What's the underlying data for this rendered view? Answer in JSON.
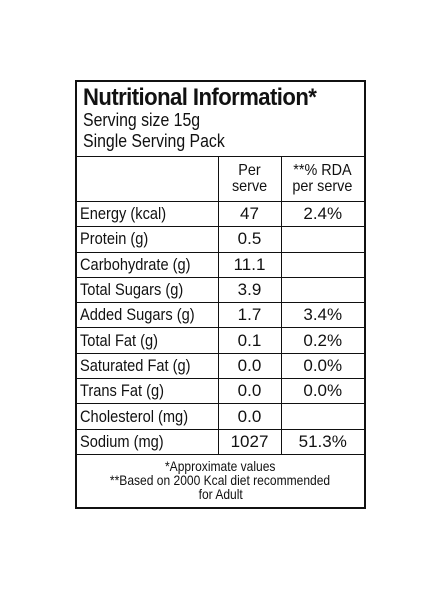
{
  "label": {
    "title": "Nutritional Information*",
    "serving_size": "Serving size 15g",
    "pack": "Single Serving Pack",
    "columns": {
      "per_serve": [
        "Per",
        "serve"
      ],
      "rda": [
        "**% RDA",
        "per serve"
      ]
    },
    "rows": [
      {
        "name": "Energy (kcal)",
        "value": "47",
        "rda": "2.4%"
      },
      {
        "name": "Protein (g)",
        "value": "0.5",
        "rda": ""
      },
      {
        "name": "Carbohydrate (g)",
        "value": "11.1",
        "rda": ""
      },
      {
        "name": "Total Sugars (g)",
        "value": "3.9",
        "rda": ""
      },
      {
        "name": "Added Sugars (g)",
        "value": "1.7",
        "rda": "3.4%"
      },
      {
        "name": "Total Fat (g)",
        "value": "0.1",
        "rda": "0.2%"
      },
      {
        "name": "Saturated Fat (g)",
        "value": "0.0",
        "rda": "0.0%"
      },
      {
        "name": "Trans Fat (g)",
        "value": "0.0",
        "rda": "0.0%"
      },
      {
        "name": "Cholesterol (mg)",
        "value": "0.0",
        "rda": ""
      },
      {
        "name": "Sodium (mg)",
        "value": "1027",
        "rda": "51.3%"
      }
    ],
    "footnotes": [
      "*Approximate values",
      "**Based on 2000 Kcal diet recommended",
      "for Adult"
    ]
  }
}
